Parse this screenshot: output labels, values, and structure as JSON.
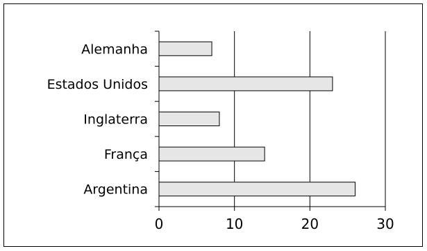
{
  "chart_data": {
    "type": "bar",
    "orientation": "horizontal",
    "categories": [
      "Alemanha",
      "Estados Unidos",
      "Inglaterra",
      "França",
      "Argentina"
    ],
    "values": [
      7,
      23,
      8,
      14,
      26
    ],
    "title": "",
    "xlabel": "",
    "ylabel": "",
    "xlim": [
      0,
      30
    ],
    "xticks": [
      0,
      10,
      20,
      30
    ],
    "grid": "vertical lines at 10, 20, 30",
    "legend": "none",
    "colors": {
      "bar_fill": "#e6e6e6",
      "bar_stroke": "#000000",
      "grid": "#000000",
      "frame": "#000000"
    }
  }
}
